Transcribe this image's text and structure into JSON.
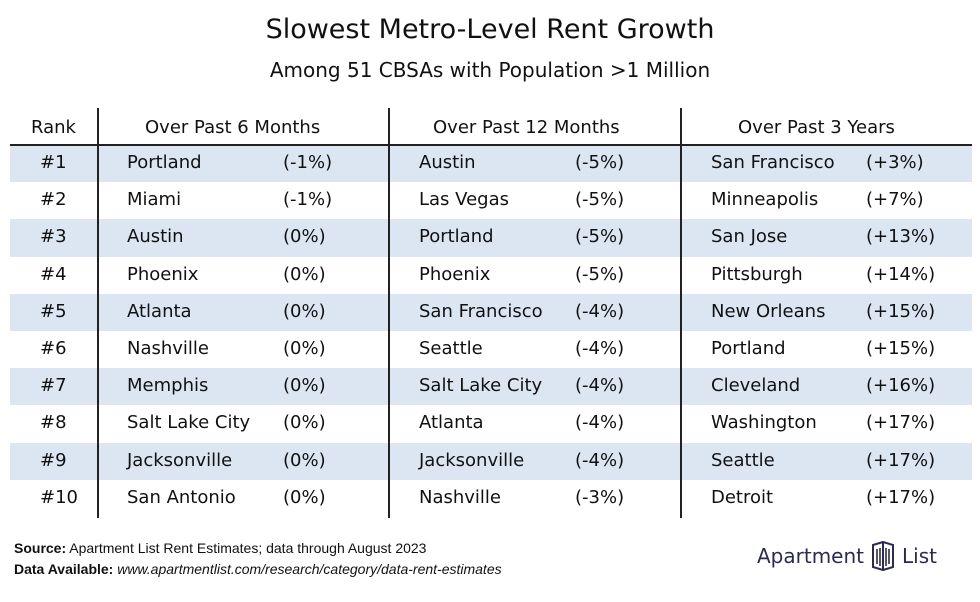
{
  "title": "Slowest Metro-Level Rent Growth",
  "subtitle": "Among 51 CBSAs with Population >1 Million",
  "chart_data": {
    "type": "table",
    "columns": [
      "Rank",
      "Over Past 6 Months",
      "Over Past 12 Months",
      "Over Past 3 Years"
    ],
    "rows": [
      {
        "rank": "#1",
        "m6_city": "Portland",
        "m6_val": "(-1%)",
        "m12_city": "Austin",
        "m12_val": "(-5%)",
        "y3_city": "San Francisco",
        "y3_val": "(+3%)"
      },
      {
        "rank": "#2",
        "m6_city": "Miami",
        "m6_val": "(-1%)",
        "m12_city": "Las Vegas",
        "m12_val": "(-5%)",
        "y3_city": "Minneapolis",
        "y3_val": "(+7%)"
      },
      {
        "rank": "#3",
        "m6_city": "Austin",
        "m6_val": "(0%)",
        "m12_city": "Portland",
        "m12_val": "(-5%)",
        "y3_city": "San Jose",
        "y3_val": "(+13%)"
      },
      {
        "rank": "#4",
        "m6_city": "Phoenix",
        "m6_val": "(0%)",
        "m12_city": "Phoenix",
        "m12_val": "(-5%)",
        "y3_city": "Pittsburgh",
        "y3_val": "(+14%)"
      },
      {
        "rank": "#5",
        "m6_city": "Atlanta",
        "m6_val": "(0%)",
        "m12_city": "San Francisco",
        "m12_val": "(-4%)",
        "y3_city": "New Orleans",
        "y3_val": "(+15%)"
      },
      {
        "rank": "#6",
        "m6_city": "Nashville",
        "m6_val": "(0%)",
        "m12_city": "Seattle",
        "m12_val": "(-4%)",
        "y3_city": "Portland",
        "y3_val": "(+15%)"
      },
      {
        "rank": "#7",
        "m6_city": "Memphis",
        "m6_val": "(0%)",
        "m12_city": "Salt Lake City",
        "m12_val": "(-4%)",
        "y3_city": "Cleveland",
        "y3_val": "(+16%)"
      },
      {
        "rank": "#8",
        "m6_city": "Salt Lake City",
        "m6_val": "(0%)",
        "m12_city": "Atlanta",
        "m12_val": "(-4%)",
        "y3_city": "Washington",
        "y3_val": "(+17%)"
      },
      {
        "rank": "#9",
        "m6_city": "Jacksonville",
        "m6_val": "(0%)",
        "m12_city": "Jacksonville",
        "m12_val": "(-4%)",
        "y3_city": "Seattle",
        "y3_val": "(+17%)"
      },
      {
        "rank": "#10",
        "m6_city": "San Antonio",
        "m6_val": "(0%)",
        "m12_city": "Nashville",
        "m12_val": "(-3%)",
        "y3_city": "Detroit",
        "y3_val": "(+17%)"
      }
    ],
    "row_band_color": "#dce6f3"
  },
  "footer": {
    "source_label": "Source:",
    "source_text": "Apartment List Rent Estimates; data through August 2023",
    "data_label": "Data Available:",
    "data_text": "www.apartmentlist.com/research/category/data-rent-estimates"
  },
  "logo": {
    "left": "Apartment",
    "right": "List",
    "icon": "apartment-list-logo-icon",
    "color": "#2b2a55"
  }
}
